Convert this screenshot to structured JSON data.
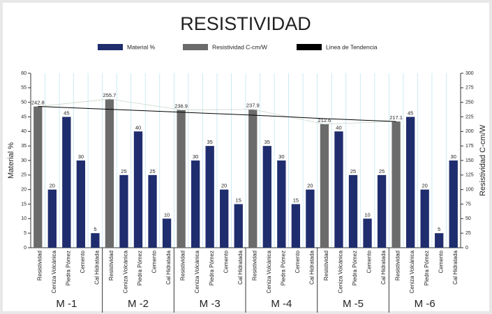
{
  "chart_data": {
    "type": "bar",
    "title": "RESISTIVIDAD",
    "groups": [
      "M -1",
      "M -2",
      "M -3",
      "M -4",
      "M -5",
      "M -6"
    ],
    "categories": [
      "Resistividad",
      "Ceniza Volcánica",
      "Piedra Pómez",
      "Cemento",
      "Cal Hidratada",
      "Resistividad",
      "Ceniza Volcánica",
      "Piedra Pómez",
      "Cemento",
      "Cal Hidratada",
      "Resistividad",
      "Ceniza Volcánica",
      "Piedra Pómez",
      "Cemento",
      "Cal Hidratada",
      "Resistividad",
      "Ceniza Volcánica",
      "Piedra Pómez",
      "Cemento",
      "Cal Hidratada",
      "Resistividad",
      "Ceniza Volcánica",
      "Piedra Pómez",
      "Cemento",
      "Cal Hidratada",
      "Resistividad",
      "Ceniza Volcánica",
      "Piedra Pómez",
      "Cemento",
      "Cal Hidratada"
    ],
    "series": [
      {
        "name": "Material %",
        "color": "#1f2d6e",
        "values": [
          null,
          20,
          45,
          30,
          5,
          null,
          25,
          40,
          25,
          10,
          null,
          30,
          35,
          20,
          15,
          null,
          35,
          30,
          15,
          20,
          null,
          40,
          25,
          10,
          25,
          null,
          45,
          20,
          5,
          30
        ]
      },
      {
        "name": "Resistividad C-cm/W",
        "color": "#6b6b6b",
        "axis": "y2",
        "values": [
          242.8,
          null,
          null,
          null,
          null,
          255.7,
          null,
          null,
          null,
          null,
          236.9,
          null,
          null,
          null,
          null,
          237.9,
          null,
          null,
          null,
          null,
          212.6,
          null,
          null,
          null,
          null,
          217.1,
          null,
          null,
          null,
          null
        ]
      }
    ],
    "trend": {
      "name": "Linea de Tendencia",
      "color": "#000000",
      "values": [
        243,
        238,
        233,
        228,
        222,
        217
      ]
    },
    "ylabel": "Material %",
    "y2label": "Resistividad C-cm/W",
    "ylim": [
      0,
      60
    ],
    "yticks": [
      0,
      5,
      10,
      15,
      20,
      25,
      30,
      35,
      40,
      45,
      50,
      55,
      60
    ],
    "y2lim": [
      0,
      300
    ],
    "y2ticks": [
      0,
      25,
      50,
      75,
      100,
      125,
      150,
      175,
      200,
      225,
      250,
      275,
      300
    ]
  }
}
